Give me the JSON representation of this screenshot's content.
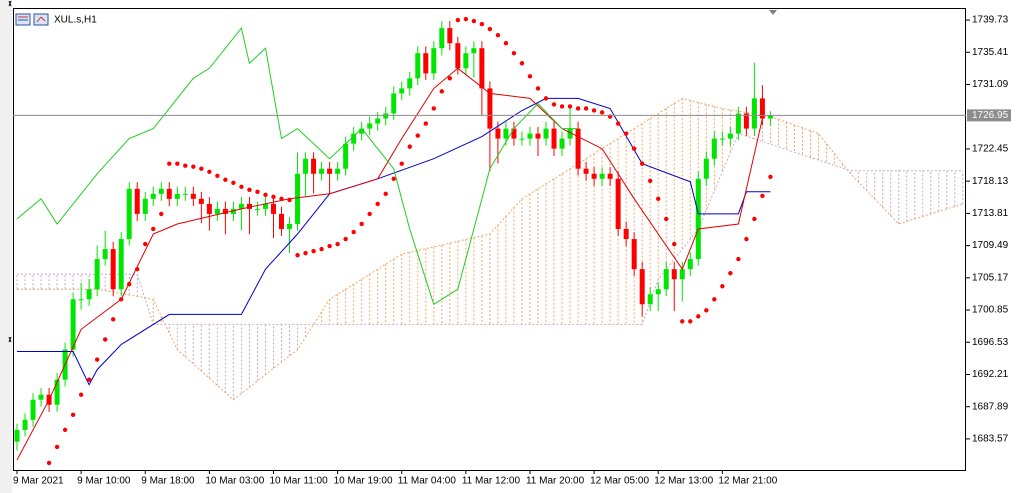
{
  "chart_data": {
    "type": "candlestick",
    "title": "XUL.s,H1",
    "up_color": "#00e600",
    "down_color": "#ff0000",
    "grid": false,
    "xlim": [
      -0.5,
      118.4
    ],
    "ylim": [
      1679.4,
      1741.35
    ],
    "yticks": [
      1739.73,
      1735.41,
      1731.09,
      1722.45,
      1718.13,
      1713.81,
      1709.49,
      1705.17,
      1700.85,
      1696.53,
      1692.21,
      1687.89,
      1683.57
    ],
    "xticks": [
      {
        "value": 0,
        "label": "9 Mar 2021"
      },
      {
        "value": 8,
        "label": "9 Mar 10:00"
      },
      {
        "value": 16,
        "label": "9 Mar 18:00"
      },
      {
        "value": 24,
        "label": "10 Mar 03:00"
      },
      {
        "value": 32,
        "label": "10 Mar 11:00"
      },
      {
        "value": 40,
        "label": "10 Mar 19:00"
      },
      {
        "value": 48,
        "label": "11 Mar 04:00"
      },
      {
        "value": 56,
        "label": "11 Mar 12:00"
      },
      {
        "value": 64,
        "label": "11 Mar 20:00"
      },
      {
        "value": 72,
        "label": "12 Mar 05:00"
      },
      {
        "value": 80,
        "label": "12 Mar 13:00"
      },
      {
        "value": 88,
        "label": "12 Mar 21:00"
      }
    ],
    "last_price": 1726.95,
    "last_price_color": "#8c8c8c",
    "open": [
      1683.2,
      1684.78,
      1686.13,
      1688.82,
      1689.49,
      1688.15,
      1691.51,
      1695.55,
      1702.29,
      1702.29,
      1703.64,
      1707.68,
      1709.02,
      1703.64,
      1710.37,
      1717.1,
      1713.74,
      1715.76,
      1716.43,
      1717.1,
      1715.76,
      1716.43,
      1716.43,
      1715.76,
      1715.08,
      1713.74,
      1714.41,
      1713.74,
      1714.41,
      1715.08,
      1714.41,
      1714.41,
      1715.08,
      1713.74,
      1711.72,
      1712.39,
      1719.12,
      1721.14,
      1719.12,
      1719.8,
      1719.12,
      1719.8,
      1723.16,
      1724.51,
      1725.18,
      1725.86,
      1726.53,
      1727.2,
      1729.9,
      1730.57,
      1731.92,
      1735.29,
      1732.59,
      1735.96,
      1738.65,
      1736.63,
      1733.27,
      1735.29,
      1735.96,
      1730.57,
      1725.18,
      1723.84,
      1725.18,
      1723.84,
      1723.84,
      1724.51,
      1723.84,
      1725.18,
      1722.49,
      1723.84,
      1725.18,
      1719.8,
      1719.12,
      1718.45,
      1719.12,
      1718.45,
      1711.72,
      1710.37,
      1706.33,
      1701.62,
      1702.96,
      1703.64,
      1706.33,
      1704.98,
      1706.33,
      1707.68,
      1718.45,
      1721.14,
      1723.84,
      1723.84,
      1724.51,
      1727.2,
      1725.18,
      1729.23,
      1726.53
    ],
    "high": [
      1685.6,
      1687.0,
      1689.7,
      1690.4,
      1690.4,
      1692.4,
      1696.5,
      1703.2,
      1704.5,
      1705.0,
      1709.5,
      1711.5,
      1710.0,
      1711.3,
      1718.0,
      1718.0,
      1716.7,
      1717.4,
      1718.0,
      1718.0,
      1717.4,
      1717.4,
      1717.4,
      1716.7,
      1716.0,
      1715.4,
      1715.4,
      1715.4,
      1716.0,
      1716.0,
      1715.4,
      1716.0,
      1716.0,
      1714.7,
      1713.3,
      1722.0,
      1722.0,
      1722.0,
      1720.7,
      1720.7,
      1720.7,
      1724.1,
      1725.4,
      1726.1,
      1726.8,
      1727.4,
      1728.1,
      1730.8,
      1731.5,
      1732.8,
      1736.2,
      1736.2,
      1736.9,
      1739.6,
      1739.6,
      1737.5,
      1736.2,
      1736.9,
      1736.9,
      1731.5,
      1726.1,
      1726.1,
      1726.1,
      1724.8,
      1725.4,
      1725.4,
      1726.1,
      1726.1,
      1724.8,
      1728.0,
      1726.1,
      1720.7,
      1720.0,
      1720.0,
      1720.0,
      1719.4,
      1712.7,
      1711.3,
      1707.3,
      1703.9,
      1704.6,
      1707.3,
      1707.3,
      1707.3,
      1708.6,
      1719.4,
      1722.1,
      1724.8,
      1724.8,
      1725.4,
      1728.1,
      1728.1,
      1734.0,
      1731.0,
      1727.5
    ],
    "low": [
      1682.0,
      1683.9,
      1685.2,
      1687.9,
      1687.2,
      1687.2,
      1690.6,
      1694.6,
      1700.9,
      1701.4,
      1702.7,
      1706.8,
      1702.7,
      1702.7,
      1709.5,
      1712.8,
      1712.8,
      1714.8,
      1715.5,
      1714.8,
      1714.8,
      1715.5,
      1714.8,
      1712.5,
      1711.5,
      1712.8,
      1711.0,
      1712.8,
      1711.5,
      1711.0,
      1713.5,
      1713.5,
      1710.5,
      1710.8,
      1708.5,
      1711.5,
      1716.0,
      1716.5,
      1718.2,
      1716.5,
      1718.2,
      1718.9,
      1722.2,
      1723.6,
      1724.3,
      1724.9,
      1725.6,
      1726.3,
      1729.0,
      1729.6,
      1731.0,
      1731.7,
      1731.7,
      1735.0,
      1735.7,
      1732.4,
      1732.4,
      1732.0,
      1727.0,
      1719.5,
      1720.5,
      1722.9,
      1722.9,
      1722.9,
      1722.9,
      1721.5,
      1722.9,
      1721.5,
      1721.5,
      1722.9,
      1718.9,
      1718.2,
      1717.5,
      1717.5,
      1717.5,
      1710.8,
      1709.4,
      1705.4,
      1700.0,
      1700.7,
      1700.7,
      1702.7,
      1700.7,
      1702.0,
      1705.4,
      1706.8,
      1717.5,
      1720.2,
      1722.9,
      1722.9,
      1723.6,
      1724.2,
      1724.2,
      1725.6,
      1725.6
    ],
    "close": [
      1684.78,
      1686.13,
      1688.82,
      1689.49,
      1688.15,
      1691.51,
      1695.55,
      1702.29,
      1702.29,
      1703.64,
      1707.68,
      1709.02,
      1703.64,
      1710.37,
      1717.1,
      1713.74,
      1715.76,
      1716.43,
      1717.1,
      1715.76,
      1716.43,
      1716.43,
      1715.76,
      1715.08,
      1713.74,
      1714.41,
      1713.74,
      1714.41,
      1715.08,
      1714.41,
      1714.41,
      1715.08,
      1713.74,
      1711.72,
      1712.39,
      1719.12,
      1721.14,
      1719.12,
      1719.8,
      1719.12,
      1719.8,
      1723.16,
      1724.51,
      1725.18,
      1725.86,
      1726.53,
      1727.2,
      1729.9,
      1730.57,
      1731.92,
      1735.29,
      1732.59,
      1735.96,
      1738.65,
      1736.63,
      1733.27,
      1735.29,
      1735.96,
      1730.57,
      1725.18,
      1723.84,
      1725.18,
      1723.84,
      1723.84,
      1724.51,
      1723.84,
      1725.18,
      1722.49,
      1723.84,
      1725.18,
      1719.8,
      1719.12,
      1718.45,
      1719.12,
      1718.45,
      1711.72,
      1710.37,
      1706.33,
      1701.62,
      1702.96,
      1703.64,
      1706.33,
      1704.98,
      1706.33,
      1707.68,
      1718.45,
      1721.14,
      1723.84,
      1723.84,
      1724.51,
      1727.2,
      1725.18,
      1729.23,
      1726.53,
      1726.95
    ],
    "cloud": [
      {
        "color": "#f4a460",
        "x": [
          0,
          10,
          17,
          20,
          27,
          35,
          39,
          48,
          59,
          63,
          68,
          75,
          83,
          88,
          94,
          100,
          104,
          110,
          118
        ],
        "values": [
          1703.64,
          1703.64,
          1702.29,
          1695.55,
          1688.82,
          1695.55,
          1702.29,
          1708.35,
          1711.04,
          1715.76,
          1719.12,
          1723.84,
          1729.23,
          1727.88,
          1726.8,
          1724.51,
          1719.12,
          1712.39,
          1715.08
        ]
      },
      {
        "color": "#c8a8c8",
        "x": [
          0,
          15,
          17,
          35,
          59,
          78,
          80,
          85,
          90,
          104,
          118
        ],
        "values": [
          1705.66,
          1705.66,
          1698.92,
          1698.92,
          1698.92,
          1698.92,
          1704.98,
          1711.72,
          1724.51,
          1719.53,
          1719.53
        ]
      }
    ],
    "lines": [
      {
        "color": "#0000cd",
        "x": [
          0,
          7,
          9,
          10,
          13,
          19,
          28,
          31,
          35,
          39,
          45,
          52,
          58,
          63,
          66,
          70,
          74,
          78,
          84,
          85,
          90,
          91,
          94
        ],
        "values": [
          1695.29,
          1695.29,
          1690.84,
          1692.86,
          1696.23,
          1700.27,
          1700.27,
          1706.33,
          1711.04,
          1716.43,
          1718.45,
          1721.14,
          1724.1,
          1727.61,
          1729.23,
          1729.23,
          1727.88,
          1720.47,
          1718.05,
          1713.74,
          1713.74,
          1716.7,
          1716.7
        ]
      },
      {
        "color": "#e00000",
        "x": [
          0,
          4,
          8,
          13,
          17,
          20,
          28,
          34,
          39,
          45,
          48,
          52,
          55,
          59,
          64,
          68,
          73,
          77,
          83,
          85,
          90,
          93
        ],
        "values": [
          1680.74,
          1688.82,
          1698.25,
          1702.29,
          1711.04,
          1712.39,
          1714.41,
          1715.76,
          1716.43,
          1718.45,
          1723.84,
          1730.57,
          1733.27,
          1729.9,
          1729.23,
          1725.18,
          1722.49,
          1715.76,
          1706.33,
          1711.72,
          1712.39,
          1726.53
        ]
      },
      {
        "color": "#22cc22",
        "x": [
          0,
          3,
          5,
          10,
          14,
          17,
          22,
          24,
          28,
          29,
          31,
          33,
          35,
          39,
          43,
          47,
          49,
          52,
          55,
          59,
          62,
          65,
          68,
          70
        ],
        "values": [
          1713.07,
          1715.76,
          1712.39,
          1719.12,
          1723.84,
          1725.18,
          1731.92,
          1733.27,
          1738.65,
          1733.94,
          1735.96,
          1723.84,
          1725.18,
          1721.14,
          1725.18,
          1719.8,
          1711.72,
          1701.62,
          1703.64,
          1719.8,
          1725.18,
          1728.55,
          1725.18,
          1725.18
        ]
      }
    ],
    "sar": {
      "color": "#ff0000",
      "values": [
        null,
        null,
        null,
        null,
        1680.34,
        1682.49,
        1684.78,
        1686.8,
        1689.49,
        1691.51,
        1694.21,
        1696.9,
        1699.6,
        1702.29,
        1704.31,
        1706.33,
        1709.7,
        1711.72,
        1713.74,
        1720.47,
        1720.47,
        1720.2,
        1720.07,
        1719.8,
        1719.39,
        1718.85,
        1718.32,
        1717.91,
        1717.37,
        1716.97,
        1716.7,
        1716.3,
        1716.03,
        1715.76,
        1715.62,
        1708.21,
        1708.48,
        1708.75,
        1709.02,
        1709.43,
        1709.7,
        1710.37,
        1711.31,
        1712.39,
        1713.74,
        1715.08,
        1716.43,
        1718.45,
        1720.47,
        1722.76,
        1724.24,
        1725.86,
        1727.88,
        1730.17,
        1731.92,
        1739.73,
        1739.86,
        1739.6,
        1739.19,
        1738.52,
        1737.71,
        1736.63,
        1735.29,
        1733.94,
        1732.19,
        1730.57,
        1729.23,
        1728.42,
        1728.15,
        1728.15,
        1727.88,
        1727.88,
        1727.61,
        1727.34,
        1726.8,
        1725.86,
        1724.51,
        1722.49,
        1720.47,
        1718.18,
        1715.76,
        1713.06,
        1709.7,
        1699.33,
        1699.33,
        1700.0,
        1700.81,
        1702.29,
        1704.04,
        1705.79,
        1707.68,
        1710.37,
        1713.06,
        1716.16,
        1718.72
      ]
    }
  }
}
